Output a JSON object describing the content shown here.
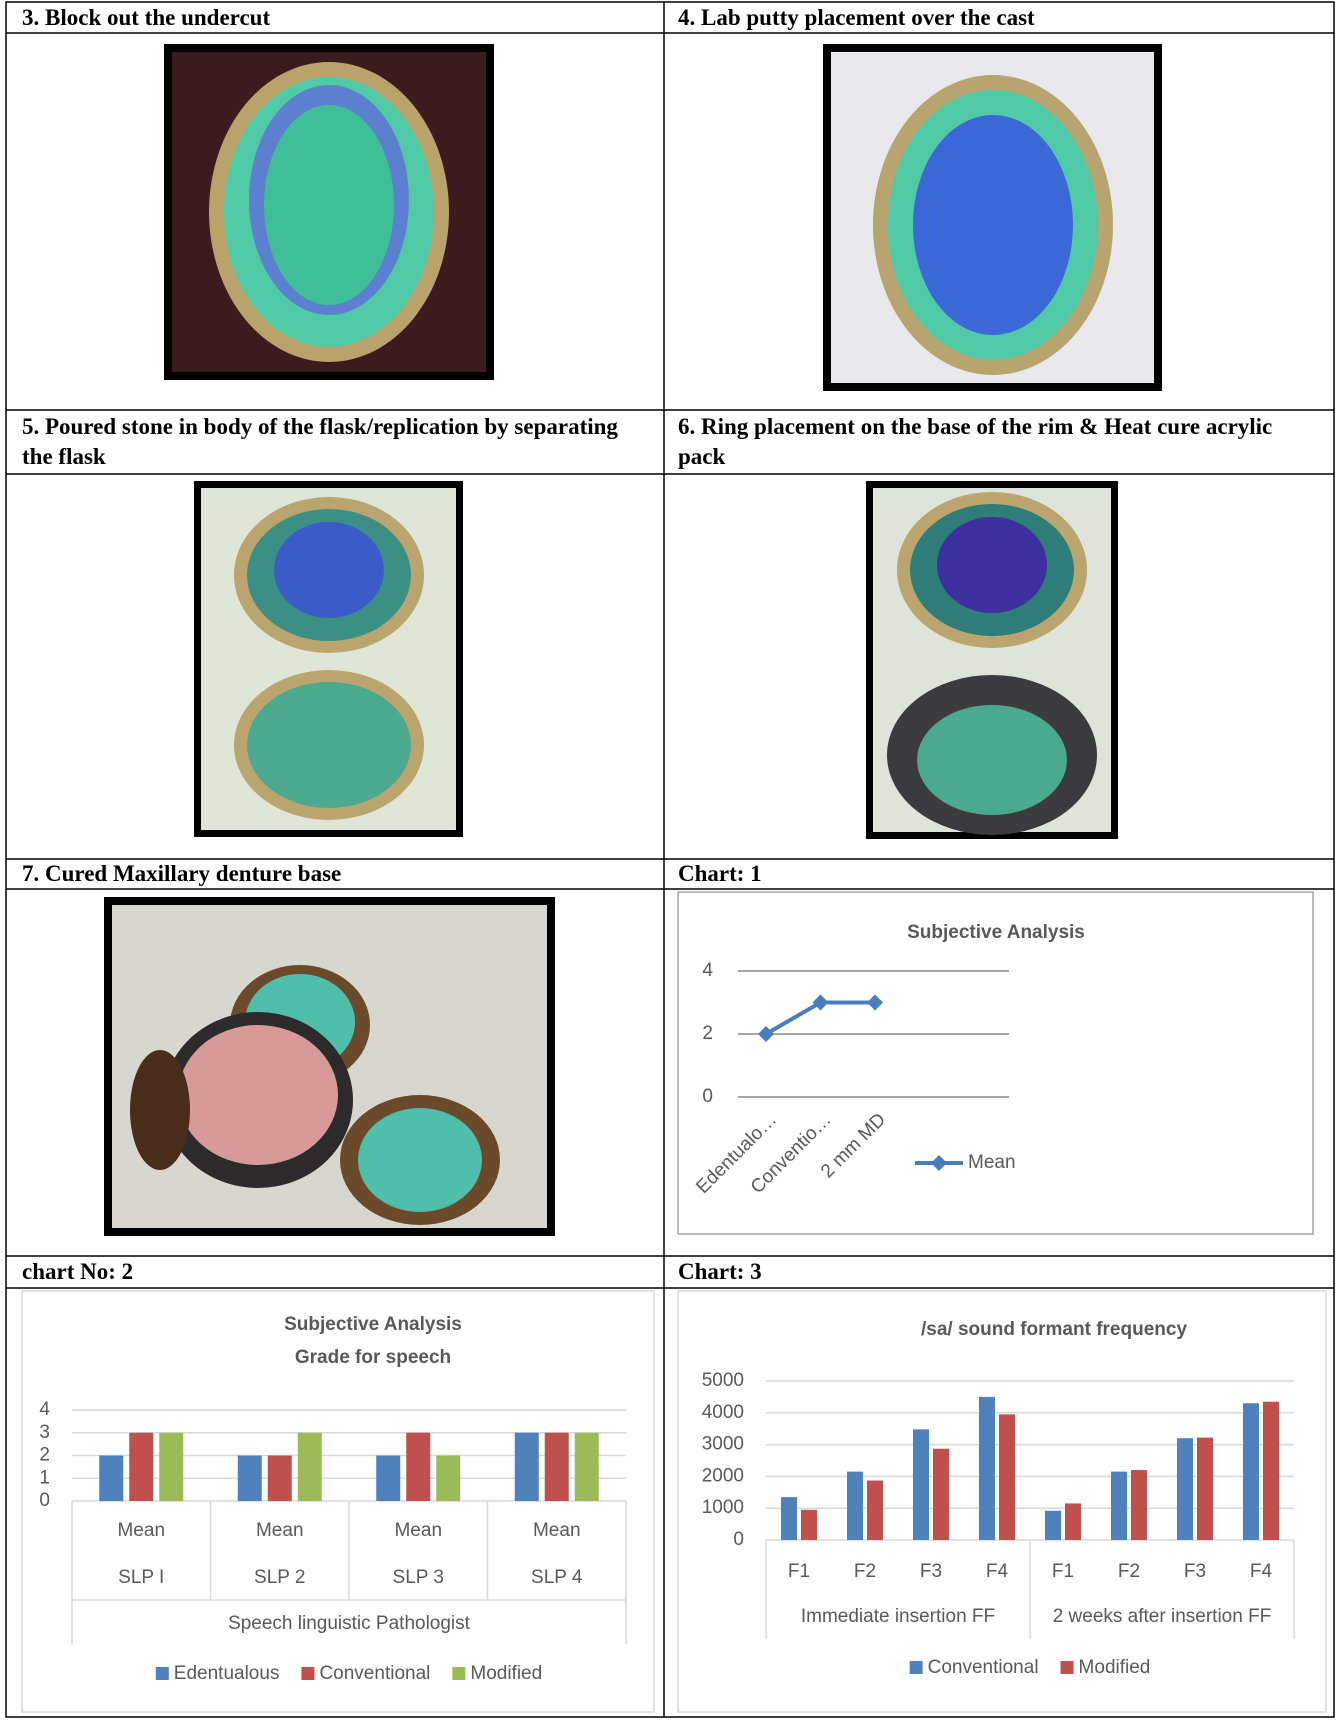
{
  "cells": [
    {
      "caption": "3. Block out the undercut"
    },
    {
      "caption": "4. Lab putty placement over the cast"
    },
    {
      "caption": "5. Poured stone in body of the flask/replication by separating the flask"
    },
    {
      "caption": "6. Ring placement on the base of the rim & Heat cure acrylic pack"
    },
    {
      "caption": "7. Cured Maxillary denture base"
    },
    {
      "caption": "Chart: 1"
    },
    {
      "caption": "chart No: 2"
    },
    {
      "caption": "Chart: 3"
    }
  ],
  "chart_data": [
    {
      "type": "line",
      "title": "Subjective Analysis",
      "categories": [
        "Edentualo…",
        "Conventio…",
        "2 mm MD"
      ],
      "series": [
        {
          "name": "Mean",
          "color": "#4a7ebb",
          "values": [
            2,
            3,
            3
          ]
        }
      ],
      "ylim": [
        0,
        4
      ],
      "yticks": [
        0,
        2,
        4
      ],
      "grid": true,
      "legend": "right"
    },
    {
      "type": "bar",
      "title": [
        "Subjective Analysis",
        "Grade for speech"
      ],
      "categories": [
        "Mean",
        "Mean",
        "Mean",
        "Mean"
      ],
      "category_groups": [
        "SLP I",
        "SLP 2",
        "SLP 3",
        "SLP 4"
      ],
      "x_label": "Speech linguistic Pathologist",
      "series": [
        {
          "name": "Edentualous",
          "color": "#4f81bd",
          "values": [
            2,
            2,
            2,
            3
          ]
        },
        {
          "name": "Conventional",
          "color": "#c0504d",
          "values": [
            3,
            2,
            3,
            3
          ]
        },
        {
          "name": "Modified",
          "color": "#9bbb59",
          "values": [
            3,
            3,
            2,
            3
          ]
        }
      ],
      "ylim": [
        0,
        4
      ],
      "yticks": [
        0,
        1,
        2,
        3,
        4
      ],
      "grid": true,
      "legend": "bottom"
    },
    {
      "type": "bar",
      "title": "/sa/ sound formant frequency",
      "categories": [
        "F1",
        "F2",
        "F3",
        "F4",
        "F1",
        "F2",
        "F3",
        "F4"
      ],
      "category_groups": [
        "Immediate insertion FF",
        "2 weeks after insertion FF"
      ],
      "series": [
        {
          "name": "Conventional",
          "color": "#4f81bd",
          "values": [
            1350,
            2150,
            3480,
            4500,
            920,
            2150,
            3200,
            4300
          ]
        },
        {
          "name": "Modified",
          "color": "#c0504d",
          "values": [
            950,
            1870,
            2870,
            3950,
            1150,
            2200,
            3220,
            4350
          ]
        }
      ],
      "ylim": [
        0,
        5000
      ],
      "yticks": [
        0,
        1000,
        2000,
        3000,
        4000,
        5000
      ],
      "grid": true,
      "legend": "bottom"
    }
  ]
}
